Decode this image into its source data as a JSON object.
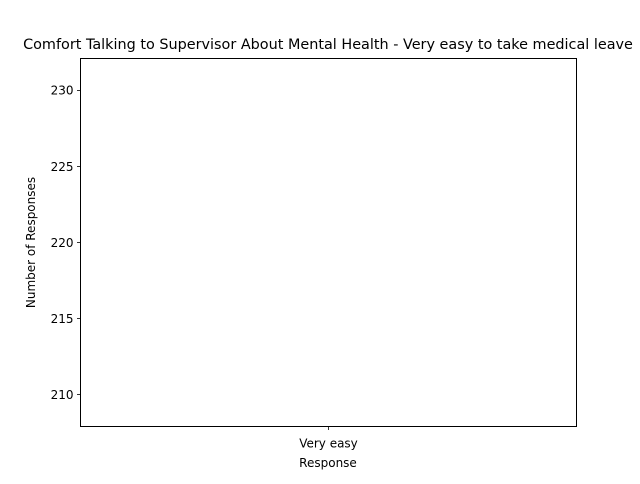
{
  "chart_data": {
    "type": "bar",
    "title": "Comfort Talking to Supervisor About Mental Health - Very easy to take medical leave",
    "xlabel": "Response",
    "ylabel": "Number of Responses",
    "categories": [
      "Very easy"
    ],
    "values": [
      null
    ],
    "ylim": [
      207.9,
      232.1
    ],
    "yticks": [
      210,
      215,
      220,
      225,
      230
    ],
    "grid": false,
    "legend": "none"
  }
}
